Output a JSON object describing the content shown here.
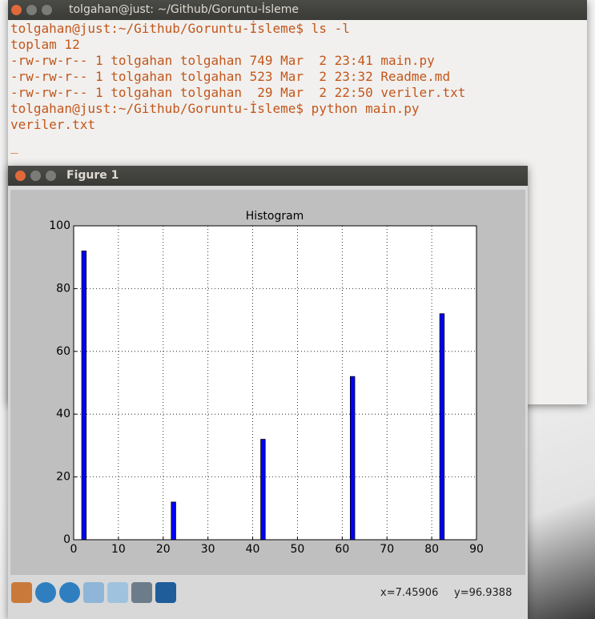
{
  "terminal": {
    "title": "tolgahan@just: ~/Github/Goruntu-İsleme",
    "lines": [
      "tolgahan@just:~/Github/Goruntu-İsleme$ ls -l",
      "toplam 12",
      "-rw-rw-r-- 1 tolgahan tolgahan 749 Mar  2 23:41 main.py",
      "-rw-rw-r-- 1 tolgahan tolgahan 523 Mar  2 23:32 Readme.md",
      "-rw-rw-r-- 1 tolgahan tolgahan  29 Mar  2 22:50 veriler.txt",
      "tolgahan@just:~/Github/Goruntu-İsleme$ python main.py",
      "veriler.txt"
    ]
  },
  "figure": {
    "window_title": "Figure 1",
    "chart": {
      "type": "bar",
      "title": "Histogram",
      "x": [
        1.8,
        21.8,
        41.8,
        61.8,
        81.8
      ],
      "bar_width": 1,
      "values": [
        92,
        12,
        32,
        52,
        72
      ],
      "color": "#0000ff",
      "xlim": [
        0,
        90
      ],
      "xticks": [
        0,
        10,
        20,
        30,
        40,
        50,
        60,
        70,
        80,
        90
      ],
      "ylim": [
        0,
        100
      ],
      "yticks": [
        0,
        20,
        40,
        60,
        80,
        100
      ],
      "grid": true
    },
    "status": {
      "x": "x=7.45906",
      "y": "y=96.9388"
    }
  }
}
